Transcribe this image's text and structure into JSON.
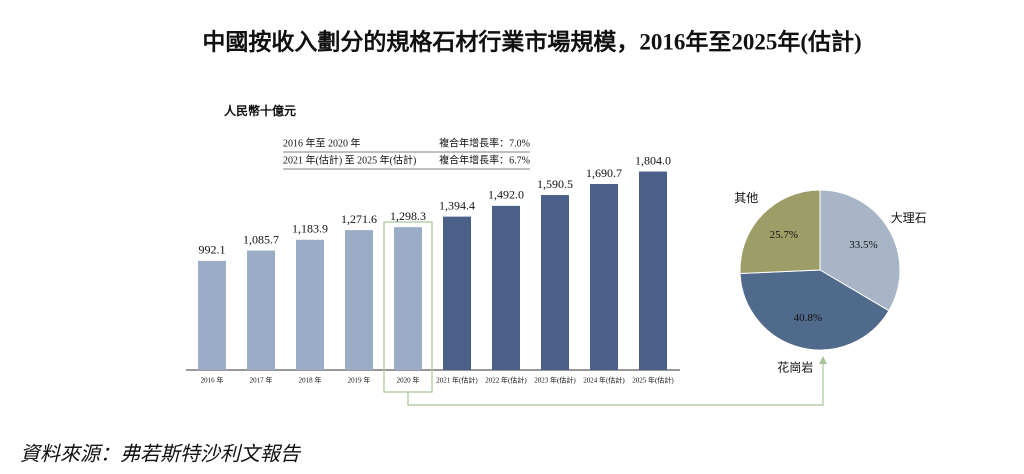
{
  "title": "中國按收入劃分的規格石材行業市場規模，2016年至2025年(估計)",
  "source": "資料來源：弗若斯特沙利文報告",
  "chart_data": [
    {
      "type": "bar",
      "unit": "人民幣十億元",
      "annotations": [
        [
          "2016 年至 2020 年",
          "複合年增長率：7.0%"
        ],
        [
          "2021 年(估計) 至 2025 年(估計)",
          "複合年增長率：6.7%"
        ]
      ],
      "categories": [
        "2016 年",
        "2017 年",
        "2018 年",
        "2019 年",
        "2020 年",
        "2021 年(估計)",
        "2022 年(估計)",
        "2023 年(估計)",
        "2024 年(估計)",
        "2025 年(估計)"
      ],
      "values": [
        992.1,
        1085.7,
        1183.9,
        1271.6,
        1298.3,
        1394.4,
        1492.0,
        1590.5,
        1690.7,
        1804.0
      ],
      "value_labels": [
        "992.1",
        "1,085.7",
        "1,183.9",
        "1,271.6",
        "1,298.3",
        "1,394.4",
        "1,492.0",
        "1,590.5",
        "1,690.7",
        "1,804.0"
      ],
      "colors": [
        "#9badc6",
        "#9badc6",
        "#9badc6",
        "#9badc6",
        "#9badc6",
        "#4a6088",
        "#4a6088",
        "#4a6088",
        "#4a6088",
        "#4a6088"
      ]
    },
    {
      "type": "pie",
      "categories": [
        "大理石",
        "花崗岩",
        "其他"
      ],
      "values": [
        33.5,
        40.8,
        25.7
      ],
      "value_labels": [
        "33.5%",
        "40.8%",
        "25.7%"
      ],
      "colors": [
        "#a7b5c6",
        "#4f6a8b",
        "#9d9d68"
      ]
    }
  ]
}
